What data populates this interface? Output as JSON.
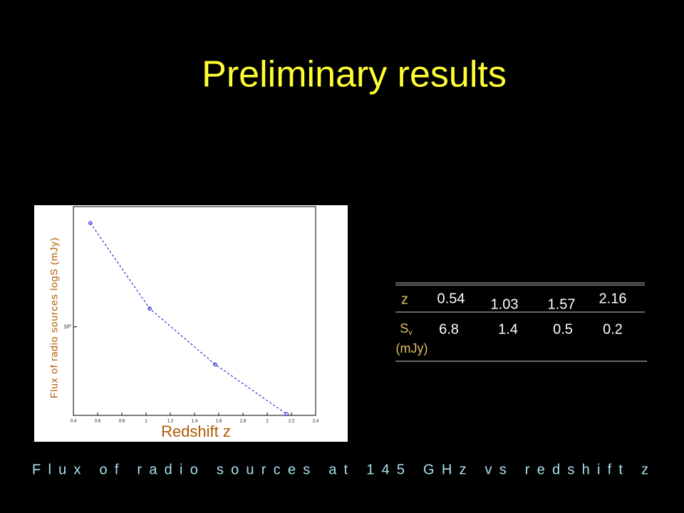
{
  "title": "Preliminary results",
  "caption": "Flux of radio sources at 145 GHz vs redshift z",
  "table": {
    "row_labels": [
      "z",
      "S"
    ],
    "subscript": "v",
    "unit": "(mJy)"
  },
  "chart_data": {
    "type": "line",
    "xlabel": "Redshift z",
    "ylabel": "Flux of radio sources logS (mJy)",
    "x": [
      0.54,
      1.03,
      1.57,
      2.16
    ],
    "values": [
      6.8,
      1.4,
      0.5,
      0.2
    ],
    "color": "#0000cc",
    "xlim": [
      0.4,
      2.4
    ],
    "xticks": [
      0.4,
      0.6,
      0.8,
      1,
      1.2,
      1.4,
      1.6,
      1.8,
      2,
      2.2,
      2.4
    ],
    "ylim": [
      0.195,
      9.2
    ],
    "yticks": [
      {
        "value": 1,
        "label": "10⁰"
      }
    ],
    "log_y": true
  }
}
